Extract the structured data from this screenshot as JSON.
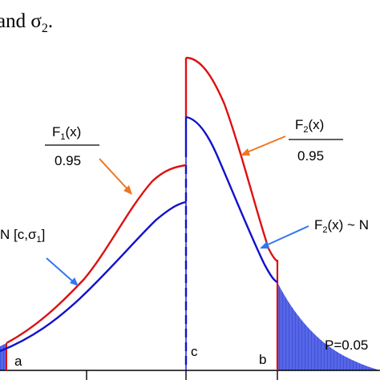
{
  "caption_fragment": "and σ",
  "caption_subscript": "2",
  "caption_end": ".",
  "labels": {
    "f1_num_prefix": "F",
    "f1_num_sub": "1",
    "f1_num_suffix": "(x)",
    "f1_den": "0.95",
    "f2_num_prefix": "F",
    "f2_num_sub": "2",
    "f2_num_suffix": "(x)",
    "f2_den": "0.95",
    "n1_prefix": "N [c,σ",
    "n1_sub": "1",
    "n1_suffix": "]",
    "f2_tilde_prefix": "F",
    "f2_tilde_sub": "2",
    "f2_tilde_suffix": "(x) ~ N",
    "point_a": "a",
    "point_b": "b",
    "point_c": "c",
    "p_value": "P=0.05"
  },
  "colors": {
    "red_curve": "#dd1111",
    "blue_curve": "#1111cc",
    "arrow_orange": "#ee7722",
    "arrow_blue": "#3377ee",
    "tail_fill": "#4455dd"
  }
}
